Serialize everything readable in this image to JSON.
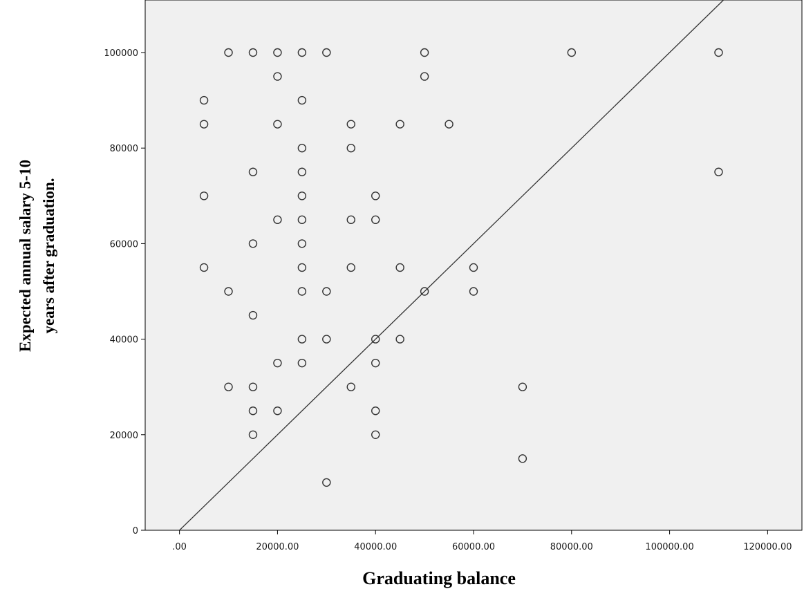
{
  "chart_data": {
    "type": "scatter",
    "title": "",
    "xlabel": "Graduating balance",
    "ylabel_lines": [
      "Expected annual salary 5-10",
      "years after graduation."
    ],
    "xlim": [
      -7000,
      127000
    ],
    "ylim": [
      0,
      111000
    ],
    "x_ticks": [
      0,
      20000,
      40000,
      60000,
      80000,
      100000,
      120000
    ],
    "x_tick_labels": [
      ".00",
      "20000.00",
      "40000.00",
      "60000.00",
      "80000.00",
      "100000.00",
      "120000.00"
    ],
    "y_ticks": [
      0,
      20000,
      40000,
      60000,
      80000,
      100000
    ],
    "y_tick_labels": [
      "0",
      "20000",
      "40000",
      "60000",
      "80000",
      "100000"
    ],
    "reference_line": {
      "from": [
        0,
        0
      ],
      "to": [
        111000,
        111000
      ]
    },
    "grid": false,
    "colors": {
      "plot_background": "#f0f0f0",
      "marker_stroke": "#333333",
      "line": "#333333"
    },
    "points": [
      [
        10000,
        100000
      ],
      [
        15000,
        100000
      ],
      [
        20000,
        100000
      ],
      [
        25000,
        100000
      ],
      [
        30000,
        100000
      ],
      [
        50000,
        100000
      ],
      [
        80000,
        100000
      ],
      [
        110000,
        100000
      ],
      [
        20000,
        95000
      ],
      [
        50000,
        95000
      ],
      [
        5000,
        90000
      ],
      [
        25000,
        90000
      ],
      [
        5000,
        85000
      ],
      [
        20000,
        85000
      ],
      [
        35000,
        85000
      ],
      [
        45000,
        85000
      ],
      [
        55000,
        85000
      ],
      [
        25000,
        80000
      ],
      [
        35000,
        80000
      ],
      [
        15000,
        75000
      ],
      [
        25000,
        75000
      ],
      [
        110000,
        75000
      ],
      [
        5000,
        70000
      ],
      [
        25000,
        70000
      ],
      [
        40000,
        70000
      ],
      [
        20000,
        65000
      ],
      [
        25000,
        65000
      ],
      [
        35000,
        65000
      ],
      [
        40000,
        65000
      ],
      [
        15000,
        60000
      ],
      [
        25000,
        60000
      ],
      [
        5000,
        55000
      ],
      [
        25000,
        55000
      ],
      [
        35000,
        55000
      ],
      [
        45000,
        55000
      ],
      [
        60000,
        55000
      ],
      [
        10000,
        50000
      ],
      [
        25000,
        50000
      ],
      [
        30000,
        50000
      ],
      [
        50000,
        50000
      ],
      [
        60000,
        50000
      ],
      [
        15000,
        45000
      ],
      [
        25000,
        40000
      ],
      [
        30000,
        40000
      ],
      [
        40000,
        40000
      ],
      [
        45000,
        40000
      ],
      [
        20000,
        35000
      ],
      [
        25000,
        35000
      ],
      [
        40000,
        35000
      ],
      [
        10000,
        30000
      ],
      [
        15000,
        30000
      ],
      [
        35000,
        30000
      ],
      [
        70000,
        30000
      ],
      [
        15000,
        25000
      ],
      [
        20000,
        25000
      ],
      [
        40000,
        25000
      ],
      [
        15000,
        20000
      ],
      [
        40000,
        20000
      ],
      [
        70000,
        15000
      ],
      [
        30000,
        10000
      ]
    ]
  }
}
